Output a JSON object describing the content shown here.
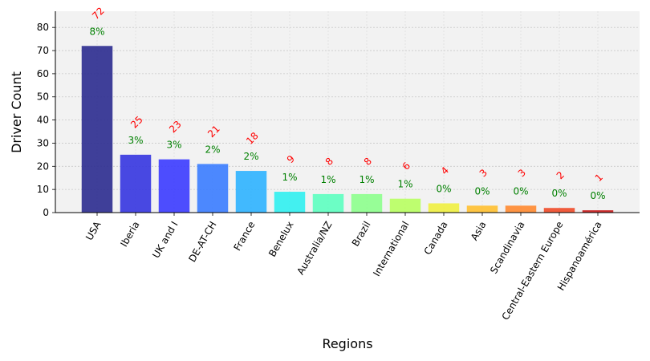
{
  "chart_data": {
    "type": "bar",
    "xlabel": "Regions",
    "ylabel": "Driver Count",
    "ylim": [
      0,
      87
    ],
    "yticks": [
      0,
      10,
      20,
      30,
      40,
      50,
      60,
      70,
      80
    ],
    "grid": true,
    "categories": [
      "USA",
      "Iberia",
      "UK and I",
      "DE-AT-CH",
      "France",
      "Benelux",
      "Australia/NZ",
      "Brazil",
      "International",
      "Canada",
      "Asia",
      "Scandinavia",
      "Central-Eastern Europe",
      "Hispanoamérica"
    ],
    "values": [
      72,
      25,
      23,
      21,
      18,
      9,
      8,
      8,
      6,
      4,
      3,
      3,
      2,
      1
    ],
    "percent_labels": [
      "8%",
      "3%",
      "3%",
      "2%",
      "2%",
      "1%",
      "1%",
      "1%",
      "1%",
      "0%",
      "0%",
      "0%",
      "0%",
      "0%"
    ],
    "colors": [
      "#2b2b8f",
      "#3535e0",
      "#3b3bff",
      "#3a7cff",
      "#2eb3ff",
      "#30f0f0",
      "#5dffc0",
      "#8dff8d",
      "#b8ff60",
      "#f0f040",
      "#ffc030",
      "#ff8a30",
      "#f04a28",
      "#c81818"
    ]
  }
}
